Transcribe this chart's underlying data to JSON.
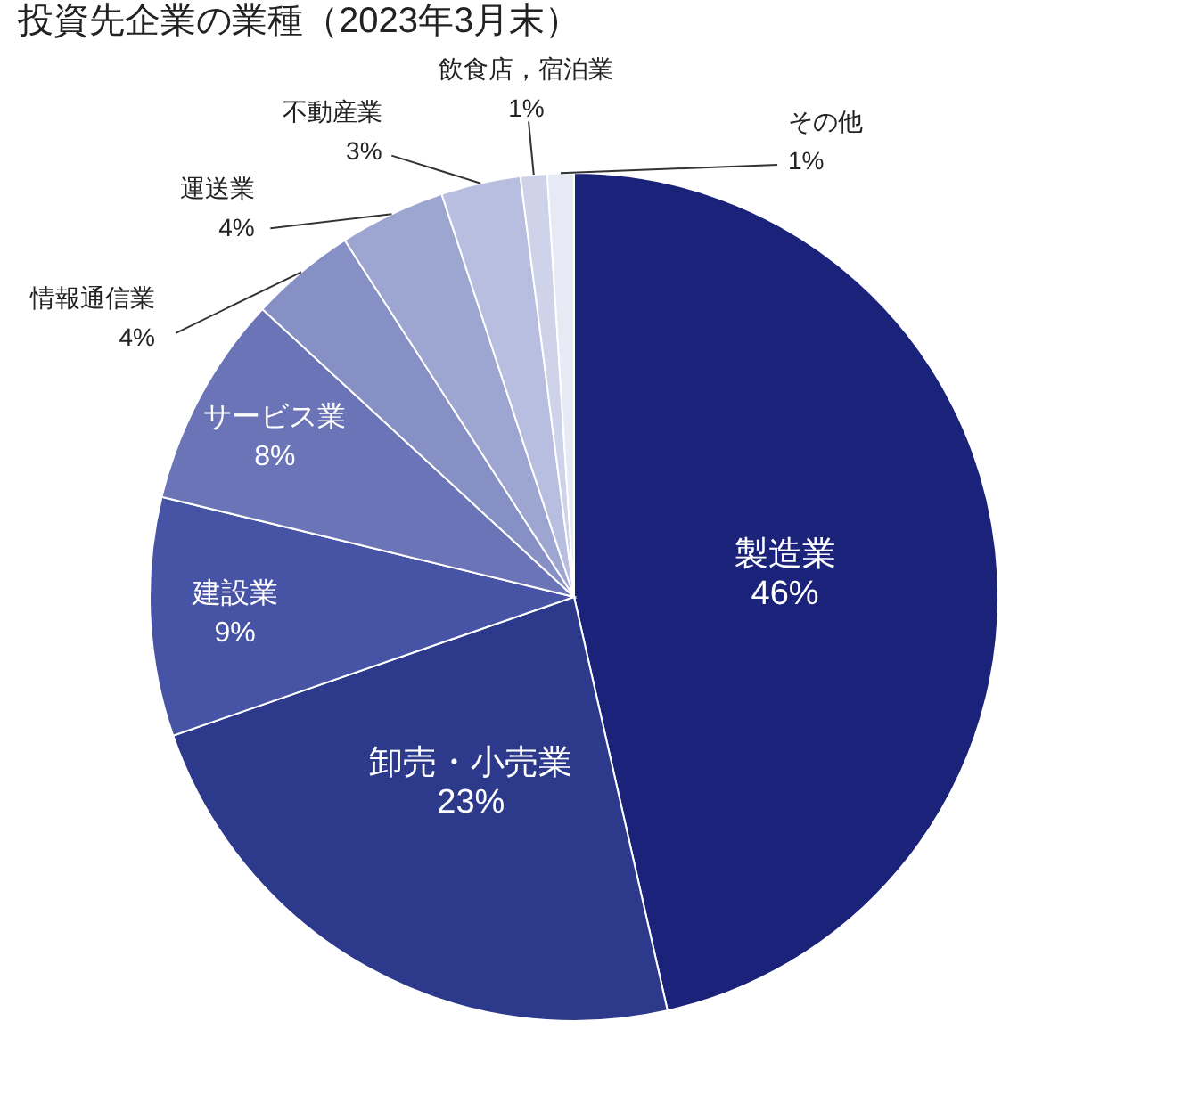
{
  "chart_data": {
    "type": "pie",
    "title": "投資先企業の業種（2023年3月末）",
    "categories": [
      "製造業",
      "卸売・小売業",
      "建設業",
      "サービス業",
      "情報通信業",
      "運送業",
      "不動産業",
      "飲食店，宿泊業",
      "その他"
    ],
    "values": [
      46,
      23,
      9,
      8,
      4,
      4,
      3,
      1,
      1
    ],
    "value_labels": [
      "46%",
      "23%",
      "9%",
      "8%",
      "4%",
      "4%",
      "3%",
      "1%",
      "1%"
    ],
    "colors": [
      "#1b227a",
      "#2d3a8c",
      "#4753a5",
      "#6a74b7",
      "#8790c5",
      "#9da5d1",
      "#b8bee0",
      "#cfd3ea",
      "#e7eaf5"
    ]
  }
}
